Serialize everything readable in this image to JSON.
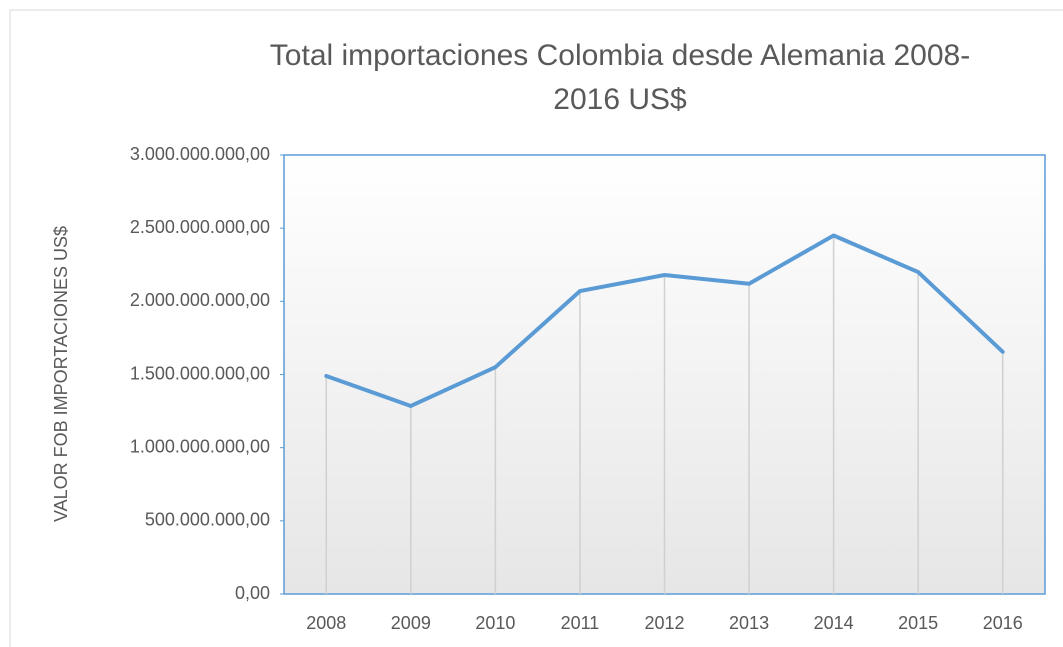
{
  "chart_data": {
    "type": "line",
    "title": "Total importaciones Colombia desde Alemania 2008-2016 US$",
    "y_label": "VALOR FOB IMPORTACIONES US$",
    "categories": [
      "2008",
      "2009",
      "2010",
      "2011",
      "2012",
      "2013",
      "2014",
      "2015",
      "2016"
    ],
    "series": [
      {
        "name": "Total importaciones",
        "color": "#5b9bd5",
        "values": [
          1490000000,
          1285000000,
          1550000000,
          2070000000,
          2180000000,
          2120000000,
          2450000000,
          2200000000,
          1655000000
        ]
      }
    ],
    "ylim": [
      0,
      3000000000
    ],
    "yticks": [
      {
        "value": 0,
        "label": "0,00"
      },
      {
        "value": 500000000,
        "label": "500.000.000,00"
      },
      {
        "value": 1000000000,
        "label": "1.000.000.000,00"
      },
      {
        "value": 1500000000,
        "label": "1.500.000.000,00"
      },
      {
        "value": 2000000000,
        "label": "2.000.000.000,00"
      },
      {
        "value": 2500000000,
        "label": "2.500.000.000,00"
      },
      {
        "value": 3000000000,
        "label": "3.000.000.000,00"
      }
    ],
    "drop_lines": true
  }
}
